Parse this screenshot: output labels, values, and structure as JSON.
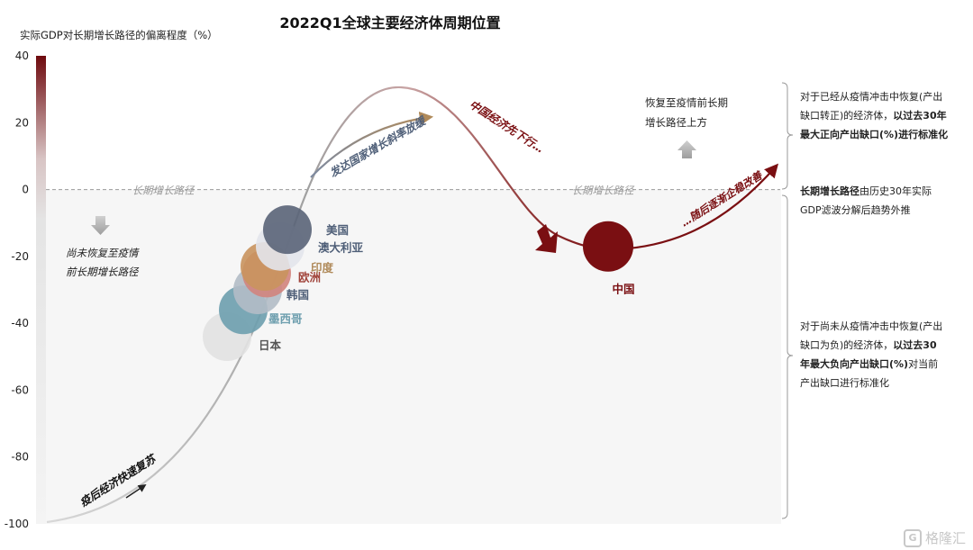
{
  "chart_data": {
    "type": "scatter",
    "title": "2022Q1全球主要经济体周期位置",
    "ylabel": "实际GDP对长期增长路径的偏离程度（%）",
    "xlabel": "",
    "ylim": [
      -100,
      40
    ],
    "yticks": [
      "40",
      "20",
      "0",
      "-20",
      "-40",
      "-60",
      "-80",
      "-100"
    ],
    "ytick_values": [
      40,
      20,
      0,
      -20,
      -40,
      -60,
      -80,
      -100
    ],
    "grid": false,
    "baseline": {
      "y": 0,
      "label": "长期增长路径"
    },
    "points": [
      {
        "name": "美国",
        "y": -12,
        "color": "#5a6478"
      },
      {
        "name": "澳大利亚",
        "y": -17,
        "color": "#e3e6ec"
      },
      {
        "name": "印度",
        "y": -23,
        "color": "#c9945e"
      },
      {
        "name": "欧洲",
        "y": -25,
        "color": "#d2847d"
      },
      {
        "name": "韩国",
        "y": -30,
        "color": "#b3bcc7"
      },
      {
        "name": "墨西哥",
        "y": -36,
        "color": "#6d9eae"
      },
      {
        "name": "日本",
        "y": -44,
        "color": "#e2e2e2"
      },
      {
        "name": "中国",
        "y": -17,
        "color": "#7a0f12"
      }
    ],
    "annotations": [
      "疫后经济快速复苏",
      "发达国家增长斜率放缓",
      "中国经济先下行…",
      "…随后逐渐企稳改善",
      "尚未恢复至疫情前长期增长路径",
      "恢复至疫情前长期增长路径上方"
    ],
    "colors": {
      "accent": "#7a0f12",
      "developed_arrow": "#b08a5a",
      "baseline": "#9a9a9a"
    }
  },
  "labels": {
    "below_line_1": "尚未恢复至疫情",
    "below_line_2": "前长期增长路径",
    "above_line_1": "恢复至疫情前长期",
    "above_line_2": "增长路径上方"
  },
  "notes": {
    "top_1": "对于已经从疫情冲击中恢复(产出",
    "top_2a": "缺口转正)的经济体，",
    "top_2b": "以过去30年",
    "top_3": "最大正向产出缺口(%)进行标准化",
    "mid_1a": "长期增长路径",
    "mid_1b": "由历史30年实际",
    "mid_2": "GDP滤波分解后趋势外推",
    "bot_1": "对于尚未从疫情冲击中恢复(产出",
    "bot_2a": "缺口为负)的经济体，",
    "bot_2b": "以过去30",
    "bot_3a": "年最大负向产出缺口(%)",
    "bot_3b": "对当前",
    "bot_4": "产出缺口进行标准化"
  },
  "watermark": {
    "mark": "G",
    "text": "格隆汇"
  }
}
